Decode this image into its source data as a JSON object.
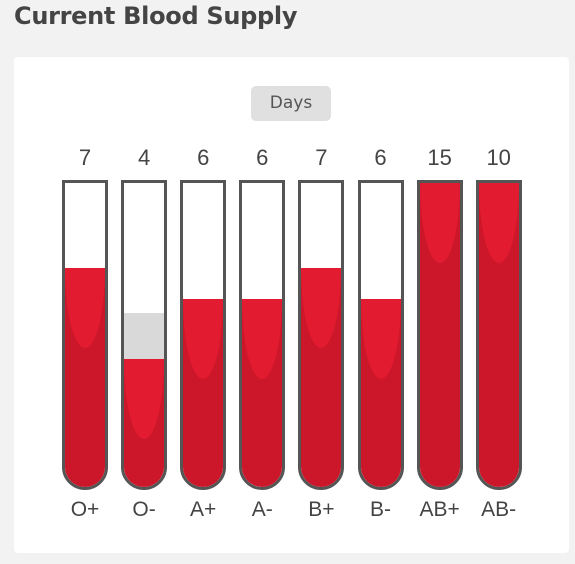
{
  "title": "Current Blood Supply",
  "toggle": {
    "label": "Days"
  },
  "colors": {
    "blood": "#cc1629",
    "blood_highlight": "#e31b30",
    "tube_border": "#555555",
    "pill": "#e0e0e0"
  },
  "tubes": [
    {
      "type": "O+",
      "days": "7",
      "fill_fraction": 0.72
    },
    {
      "type": "O-",
      "days": "4",
      "fill_fraction": 0.42
    },
    {
      "type": "A+",
      "days": "6",
      "fill_fraction": 0.62
    },
    {
      "type": "A-",
      "days": "6",
      "fill_fraction": 0.62
    },
    {
      "type": "B+",
      "days": "7",
      "fill_fraction": 0.72
    },
    {
      "type": "B-",
      "days": "6",
      "fill_fraction": 0.62
    },
    {
      "type": "AB+",
      "days": "15",
      "fill_fraction": 1.0
    },
    {
      "type": "AB-",
      "days": "10",
      "fill_fraction": 1.0
    }
  ]
}
